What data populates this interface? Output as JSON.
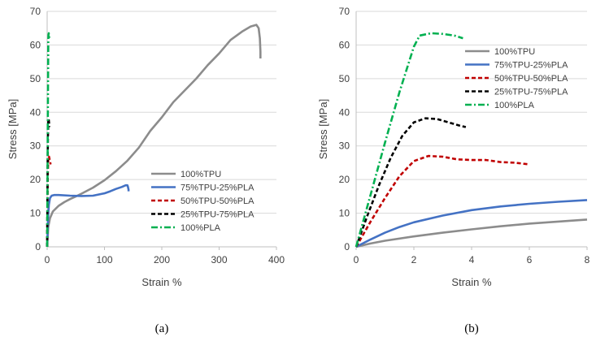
{
  "chart_data": [
    {
      "type": "line",
      "panel": "a",
      "caption": "(a)",
      "xlabel": "Strain %",
      "ylabel": "Stress [MPa]",
      "xlim": [
        0,
        400
      ],
      "ylim": [
        0,
        70
      ],
      "xticks": [
        0,
        100,
        200,
        300,
        400
      ],
      "yticks": [
        0,
        10,
        20,
        30,
        40,
        50,
        60,
        70
      ],
      "grid": "horizontal",
      "legend_position": "bottom-right",
      "series": [
        {
          "name": "100%TPU",
          "color": "#8c8c8c",
          "dash": "solid",
          "x": [
            0,
            2,
            5,
            10,
            20,
            30,
            40,
            50,
            60,
            80,
            100,
            120,
            140,
            160,
            180,
            200,
            220,
            240,
            260,
            280,
            300,
            320,
            340,
            355,
            365,
            369,
            371,
            372,
            372
          ],
          "y": [
            0,
            6,
            8.5,
            10.5,
            12.2,
            13.3,
            14.2,
            15.0,
            15.8,
            17.6,
            19.8,
            22.5,
            25.6,
            29.5,
            34.5,
            38.5,
            43.0,
            46.5,
            50.0,
            54.0,
            57.5,
            61.5,
            64.0,
            65.5,
            66.0,
            65.0,
            62.0,
            58.0,
            56.0
          ]
        },
        {
          "name": "75%TPU-25%PLA",
          "color": "#4472c4",
          "dash": "solid",
          "x": [
            0,
            1,
            2,
            3,
            5,
            8,
            12,
            20,
            40,
            60,
            80,
            100,
            110,
            120,
            130,
            137,
            140,
            141,
            142,
            142
          ],
          "y": [
            0,
            6,
            10,
            12.5,
            14.5,
            15.2,
            15.4,
            15.4,
            15.2,
            15.1,
            15.2,
            15.9,
            16.5,
            17.2,
            17.8,
            18.3,
            18.3,
            17.8,
            17.0,
            16.5
          ]
        },
        {
          "name": "50%TPU-50%PLA",
          "color": "#c00000",
          "dash": "dashed",
          "x": [
            0,
            0.6,
            1.2,
            2,
            2.6,
            3.3,
            4.2,
            5,
            6
          ],
          "y": [
            0,
            14,
            22,
            26,
            27,
            26.8,
            26,
            25.5,
            24.5
          ]
        },
        {
          "name": "25%TPU-75%PLA",
          "color": "#000000",
          "dash": "dashed",
          "x": [
            0,
            0.4,
            0.8,
            1.3,
            1.8,
            2.3,
            2.7,
            3.2,
            3.8
          ],
          "y": [
            0,
            14,
            25,
            32,
            36.5,
            38.2,
            38.0,
            37.0,
            35.6
          ]
        },
        {
          "name": "100%PLA",
          "color": "#00b050",
          "dash": "dashdot",
          "x": [
            0,
            0.5,
            1,
            1.5,
            2,
            2.3,
            2.8,
            3.3,
            3.7
          ],
          "y": [
            0,
            17,
            34,
            50,
            61.5,
            63.0,
            63.5,
            63.0,
            62.0
          ]
        }
      ]
    },
    {
      "type": "line",
      "panel": "b",
      "caption": "(b)",
      "xlabel": "Strain %",
      "ylabel": "Stress [MPa]",
      "xlim": [
        0,
        8
      ],
      "ylim": [
        0,
        70
      ],
      "xticks": [
        0,
        2,
        4,
        6,
        8
      ],
      "yticks": [
        0,
        10,
        20,
        30,
        40,
        50,
        60,
        70
      ],
      "grid": "horizontal",
      "legend_position": "top-right",
      "series": [
        {
          "name": "100%TPU",
          "color": "#8c8c8c",
          "dash": "solid",
          "x": [
            0,
            0.5,
            1,
            2,
            3,
            4,
            5,
            6,
            7,
            8
          ],
          "y": [
            0,
            1.0,
            1.8,
            3.1,
            4.2,
            5.2,
            6.1,
            6.9,
            7.5,
            8.1
          ]
        },
        {
          "name": "75%TPU-25%PLA",
          "color": "#4472c4",
          "dash": "solid",
          "x": [
            0,
            0.5,
            1,
            1.5,
            2,
            3,
            4,
            5,
            6,
            7,
            8
          ],
          "y": [
            0,
            2.2,
            4.2,
            5.9,
            7.3,
            9.3,
            10.9,
            12.0,
            12.8,
            13.4,
            13.9
          ]
        },
        {
          "name": "50%TPU-50%PLA",
          "color": "#c00000",
          "dash": "dashed",
          "x": [
            0,
            0.5,
            1,
            1.5,
            2,
            2.5,
            3,
            3.5,
            4,
            4.5,
            5,
            5.5,
            6
          ],
          "y": [
            0,
            7.5,
            14.5,
            21.0,
            25.5,
            27.0,
            26.8,
            26.0,
            25.8,
            25.8,
            25.2,
            25.0,
            24.5
          ]
        },
        {
          "name": "25%TPU-75%PLA",
          "color": "#000000",
          "dash": "dashed",
          "x": [
            0,
            0.4,
            0.8,
            1.2,
            1.6,
            2,
            2.4,
            2.8,
            3.2,
            3.6,
            3.8
          ],
          "y": [
            0,
            9.5,
            18.5,
            26.5,
            33.0,
            37.0,
            38.2,
            38.0,
            37.0,
            36.0,
            35.6
          ]
        },
        {
          "name": "100%PLA",
          "color": "#00b050",
          "dash": "dashdot",
          "x": [
            0,
            0.5,
            1,
            1.5,
            2,
            2.2,
            2.6,
            3,
            3.4,
            3.7
          ],
          "y": [
            0,
            15.5,
            31.0,
            46.0,
            59.5,
            62.8,
            63.5,
            63.3,
            62.8,
            62.0
          ]
        }
      ]
    }
  ]
}
